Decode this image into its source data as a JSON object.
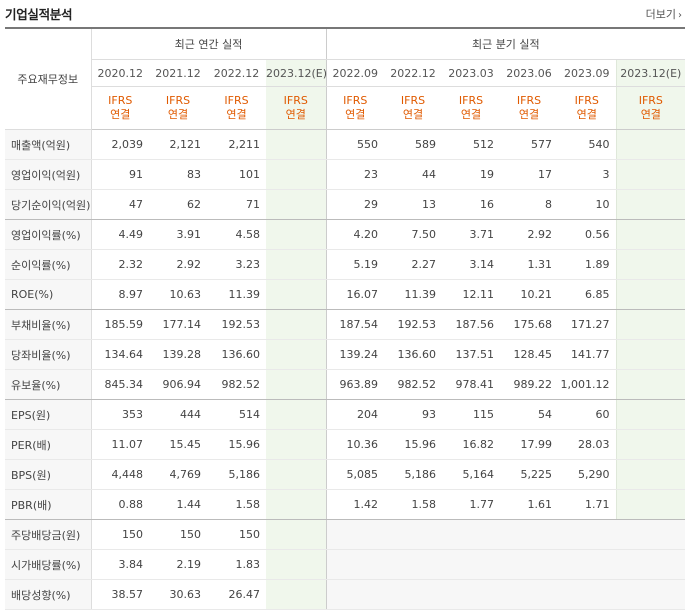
{
  "title": "기업실적분석",
  "more_label": "더보기",
  "row_header_label": "주요재무정보",
  "groups": {
    "annual": "최근 연간 실적",
    "quarterly": "최근 분기 실적"
  },
  "annual_periods": [
    "2020.12",
    "2021.12",
    "2022.12",
    "2023.12(E)"
  ],
  "quarter_periods": [
    "2022.09",
    "2022.12",
    "2023.03",
    "2023.06",
    "2023.09",
    "2023.12(E)"
  ],
  "basis": {
    "line1": "IFRS",
    "line2": "연결"
  },
  "rows": [
    {
      "label": "매출액(억원)",
      "annual": [
        "2,039",
        "2,121",
        "2,211",
        ""
      ],
      "quarter": [
        "550",
        "589",
        "512",
        "577",
        "540",
        ""
      ]
    },
    {
      "label": "영업이익(억원)",
      "annual": [
        "91",
        "83",
        "101",
        ""
      ],
      "quarter": [
        "23",
        "44",
        "19",
        "17",
        "3",
        ""
      ]
    },
    {
      "label": "당기순이익(억원)",
      "annual": [
        "47",
        "62",
        "71",
        ""
      ],
      "quarter": [
        "29",
        "13",
        "16",
        "8",
        "10",
        ""
      ]
    },
    {
      "label": "영업이익률(%)",
      "annual": [
        "4.49",
        "3.91",
        "4.58",
        ""
      ],
      "quarter": [
        "4.20",
        "7.50",
        "3.71",
        "2.92",
        "0.56",
        ""
      ]
    },
    {
      "label": "순이익률(%)",
      "annual": [
        "2.32",
        "2.92",
        "3.23",
        ""
      ],
      "quarter": [
        "5.19",
        "2.27",
        "3.14",
        "1.31",
        "1.89",
        ""
      ]
    },
    {
      "label": "ROE(%)",
      "annual": [
        "8.97",
        "10.63",
        "11.39",
        ""
      ],
      "quarter": [
        "16.07",
        "11.39",
        "12.11",
        "10.21",
        "6.85",
        ""
      ]
    },
    {
      "label": "부채비율(%)",
      "annual": [
        "185.59",
        "177.14",
        "192.53",
        ""
      ],
      "quarter": [
        "187.54",
        "192.53",
        "187.56",
        "175.68",
        "171.27",
        ""
      ]
    },
    {
      "label": "당좌비율(%)",
      "annual": [
        "134.64",
        "139.28",
        "136.60",
        ""
      ],
      "quarter": [
        "139.24",
        "136.60",
        "137.51",
        "128.45",
        "141.77",
        ""
      ]
    },
    {
      "label": "유보율(%)",
      "annual": [
        "845.34",
        "906.94",
        "982.52",
        ""
      ],
      "quarter": [
        "963.89",
        "982.52",
        "978.41",
        "989.22",
        "1,001.12",
        ""
      ]
    },
    {
      "label": "EPS(원)",
      "annual": [
        "353",
        "444",
        "514",
        ""
      ],
      "quarter": [
        "204",
        "93",
        "115",
        "54",
        "60",
        ""
      ]
    },
    {
      "label": "PER(배)",
      "annual": [
        "11.07",
        "15.45",
        "15.96",
        ""
      ],
      "quarter": [
        "10.36",
        "15.96",
        "16.82",
        "17.99",
        "28.03",
        ""
      ]
    },
    {
      "label": "BPS(원)",
      "annual": [
        "4,448",
        "4,769",
        "5,186",
        ""
      ],
      "quarter": [
        "5,085",
        "5,186",
        "5,164",
        "5,225",
        "5,290",
        ""
      ]
    },
    {
      "label": "PBR(배)",
      "annual": [
        "0.88",
        "1.44",
        "1.58",
        ""
      ],
      "quarter": [
        "1.42",
        "1.58",
        "1.77",
        "1.61",
        "1.71",
        ""
      ]
    },
    {
      "label": "주당배당금(원)",
      "annual": [
        "150",
        "150",
        "150",
        ""
      ],
      "quarter": [
        "",
        "",
        "",
        "",
        "",
        ""
      ]
    },
    {
      "label": "시가배당률(%)",
      "annual": [
        "3.84",
        "2.19",
        "1.83",
        ""
      ],
      "quarter": [
        "",
        "",
        "",
        "",
        "",
        ""
      ]
    },
    {
      "label": "배당성향(%)",
      "annual": [
        "38.57",
        "30.63",
        "26.47",
        ""
      ],
      "quarter": [
        "",
        "",
        "",
        "",
        "",
        ""
      ]
    }
  ]
}
